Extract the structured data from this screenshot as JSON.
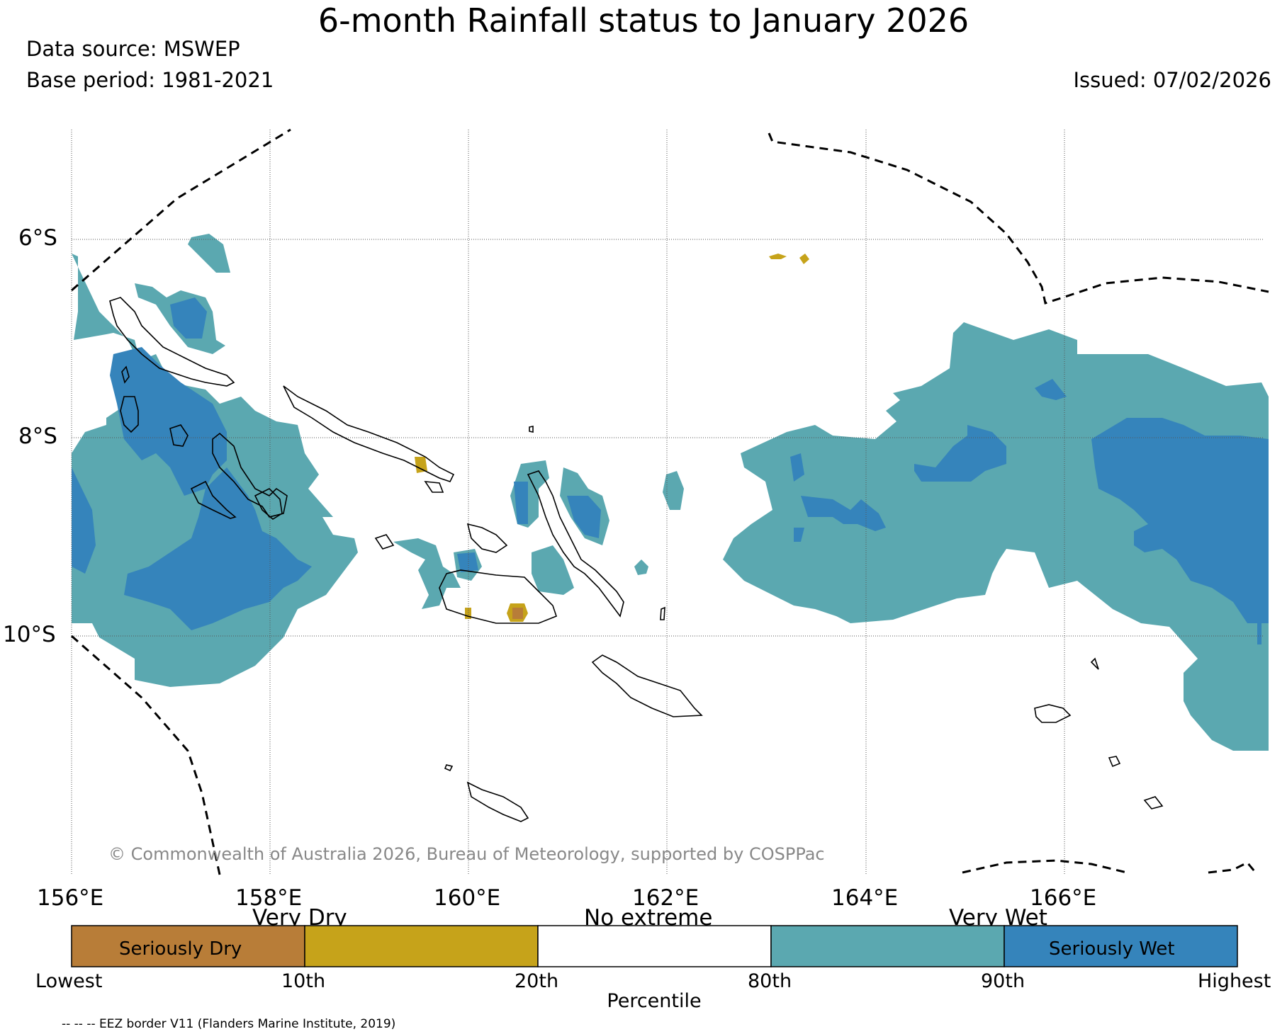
{
  "header": {
    "title": "6-month Rainfall status to January 2026",
    "data_source": "Data source: MSWEP",
    "base_period": "Base period: 1981-2021",
    "issued": "Issued: 07/02/2026"
  },
  "map": {
    "lat_labels": [
      "6°S",
      "8°S",
      "10°S"
    ],
    "lon_labels": [
      "156°E",
      "158°E",
      "160°E",
      "162°E",
      "164°E",
      "166°E"
    ],
    "copyright": "© Commonwealth of Australia 2026, Bureau of Meteorology, supported by COSPPac"
  },
  "legend": {
    "top_labels": [
      "Very Dry",
      "No extreme",
      "Very Wet"
    ],
    "inside_labels": [
      "Seriously Dry",
      "Seriously Wet"
    ],
    "ticks": [
      "Lowest",
      "10th",
      "20th",
      "80th",
      "90th",
      "Highest"
    ],
    "axis_label": "Percentile",
    "colors": [
      "#b87d38",
      "#c6a31a",
      "#ffffff",
      "#5ba8b0",
      "#3584bb"
    ]
  },
  "footnote": "-- -- -- EEZ border V11 (Flanders Marine Institute, 2019)"
}
